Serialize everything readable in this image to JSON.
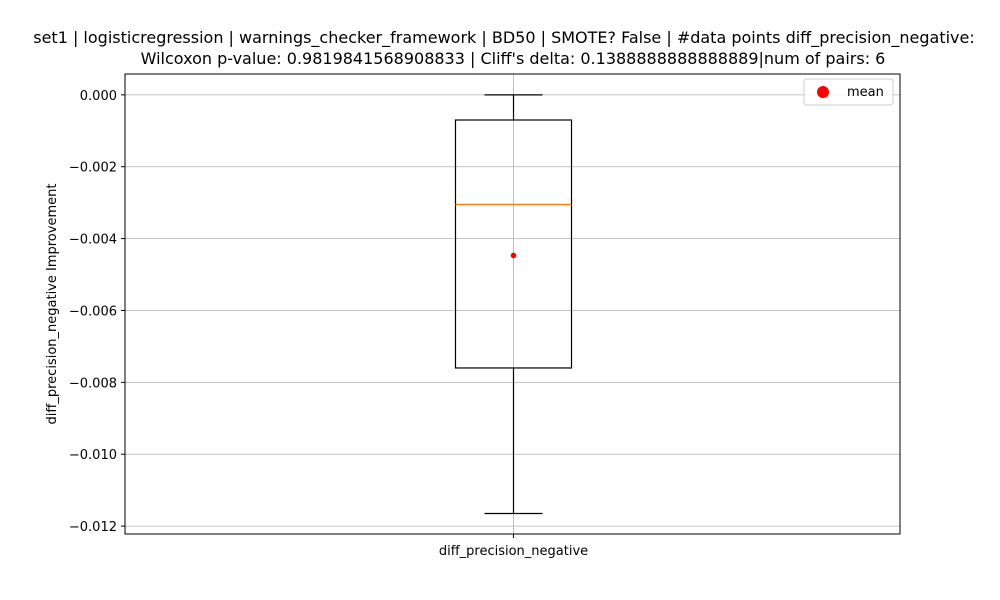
{
  "chart_data": {
    "type": "box",
    "title_lines": [
      "set1 | logisticregression | warnings_checker_framework | BD50 | SMOTE? False | #data points diff_precision_negative:",
      "Wilcoxon p-value: 0.9819841568908833 | Cliff's delta: 0.1388888888888889|num of pairs: 6"
    ],
    "xlabel": "",
    "ylabel": "diff_precision_negative Improvement",
    "categories": [
      "diff_precision_negative"
    ],
    "box": {
      "whisker_high": 0.0,
      "q3": -0.0007,
      "median": -0.00305,
      "q1": -0.0076,
      "whisker_low": -0.01165,
      "mean": -0.00447
    },
    "ylim": [
      -0.01222,
      0.00058
    ],
    "yticks": [
      0.0,
      -0.002,
      -0.004,
      -0.006,
      -0.008,
      -0.01,
      -0.012
    ],
    "ytick_labels": [
      "0.000",
      "−0.002",
      "−0.004",
      "−0.006",
      "−0.008",
      "−0.010",
      "−0.012"
    ],
    "grid": true,
    "legend": {
      "position": "top-right",
      "entries": [
        "mean"
      ]
    },
    "colors": {
      "median": "#ff7f0e",
      "mean": "#ff0000",
      "box": "#000000",
      "grid": "#b0b0b0"
    }
  }
}
